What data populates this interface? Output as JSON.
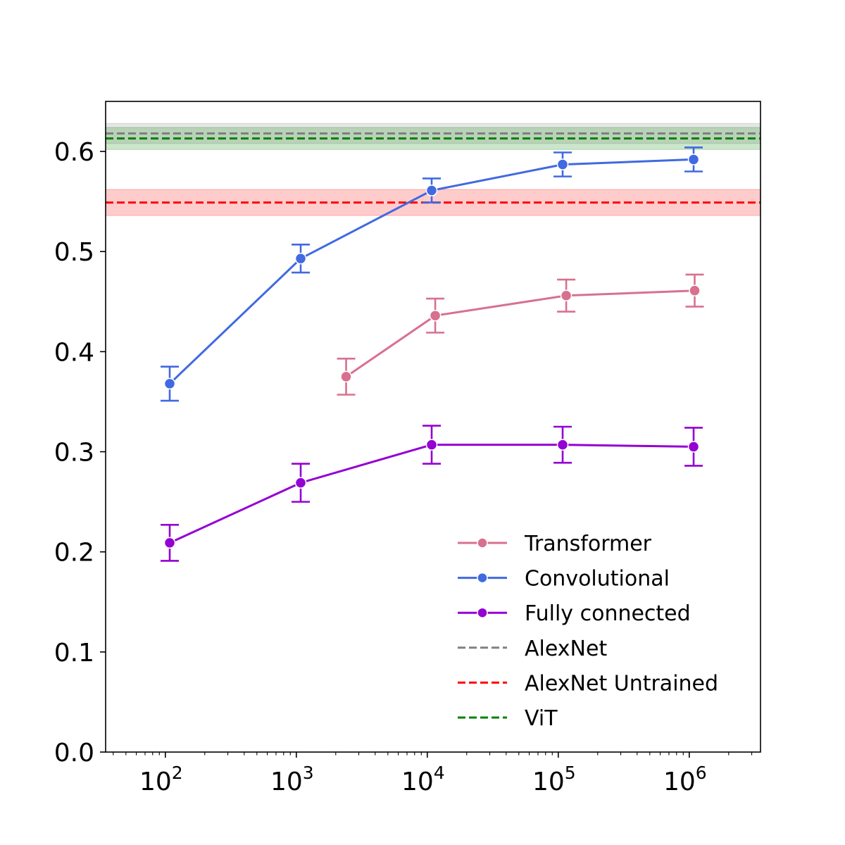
{
  "chart_data": {
    "type": "line",
    "title": "",
    "xlabel": "",
    "ylabel": "",
    "xscale": "log",
    "xlim": [
      35,
      3500000
    ],
    "ylim": [
      0.0,
      0.65
    ],
    "grid": false,
    "legend_position": "lower-right",
    "x_ticks": [
      {
        "value": 100,
        "base": "10",
        "exp": "2"
      },
      {
        "value": 1000,
        "base": "10",
        "exp": "3"
      },
      {
        "value": 10000,
        "base": "10",
        "exp": "4"
      },
      {
        "value": 100000,
        "base": "10",
        "exp": "5"
      },
      {
        "value": 1000000,
        "base": "10",
        "exp": "6"
      }
    ],
    "y_ticks": [
      {
        "value": 0.0,
        "label": "0.0"
      },
      {
        "value": 0.1,
        "label": "0.1"
      },
      {
        "value": 0.2,
        "label": "0.2"
      },
      {
        "value": 0.3,
        "label": "0.3"
      },
      {
        "value": 0.4,
        "label": "0.4"
      },
      {
        "value": 0.5,
        "label": "0.5"
      },
      {
        "value": 0.6,
        "label": "0.6"
      }
    ],
    "series": [
      {
        "name": "Transformer",
        "color": "#d8708f",
        "points": [
          {
            "x": 2400,
            "y": 0.375,
            "err": 0.018
          },
          {
            "x": 11500,
            "y": 0.436,
            "err": 0.017
          },
          {
            "x": 115000,
            "y": 0.456,
            "err": 0.016
          },
          {
            "x": 1100000,
            "y": 0.461,
            "err": 0.016
          }
        ]
      },
      {
        "name": "Convolutional",
        "color": "#4169e1",
        "points": [
          {
            "x": 108,
            "y": 0.368,
            "err": 0.017
          },
          {
            "x": 1080,
            "y": 0.493,
            "err": 0.014
          },
          {
            "x": 10800,
            "y": 0.561,
            "err": 0.012
          },
          {
            "x": 108000,
            "y": 0.587,
            "err": 0.012
          },
          {
            "x": 1080000,
            "y": 0.592,
            "err": 0.012
          }
        ]
      },
      {
        "name": "Fully connected",
        "color": "#9400d3",
        "points": [
          {
            "x": 108,
            "y": 0.209,
            "err": 0.018
          },
          {
            "x": 1080,
            "y": 0.269,
            "err": 0.019
          },
          {
            "x": 10800,
            "y": 0.307,
            "err": 0.019
          },
          {
            "x": 108000,
            "y": 0.307,
            "err": 0.018
          },
          {
            "x": 1080000,
            "y": 0.305,
            "err": 0.019
          }
        ]
      }
    ],
    "reference_lines": [
      {
        "name": "AlexNet",
        "color": "#808080",
        "value": 0.618,
        "band": [
          0.608,
          0.628
        ]
      },
      {
        "name": "AlexNet Untrained",
        "color": "#ff0000",
        "value": 0.549,
        "band": [
          0.536,
          0.562
        ]
      },
      {
        "name": "ViT",
        "color": "#008000",
        "value": 0.613,
        "band": [
          0.602,
          0.624
        ]
      }
    ]
  }
}
